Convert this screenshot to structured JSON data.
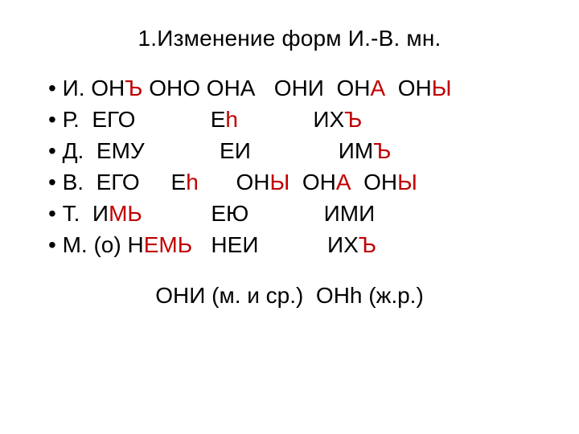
{
  "title": "1.Изменение форм И.-В. мн.",
  "colors": {
    "text": "#000000",
    "highlight": "#c00000",
    "background": "#ffffff"
  },
  "font": {
    "family": "Arial",
    "size_pt_title": 28,
    "size_pt_body": 28
  },
  "rows": [
    {
      "case": "И.",
      "segments": [
        {
          "t": "И. ОН",
          "c": "b"
        },
        {
          "t": "Ъ",
          "c": "r"
        },
        {
          "t": " ОНО ОНА   ОНИ  ОН",
          "c": "b"
        },
        {
          "t": "А",
          "c": "r"
        },
        {
          "t": "  ОН",
          "c": "b"
        },
        {
          "t": "Ы",
          "c": "r"
        }
      ]
    },
    {
      "case": "Р.",
      "segments": [
        {
          "t": "Р.  ЕГО            Е",
          "c": "b"
        },
        {
          "t": "h",
          "c": "r"
        },
        {
          "t": "            ИХ",
          "c": "b"
        },
        {
          "t": "Ъ",
          "c": "r"
        }
      ]
    },
    {
      "case": "Д.",
      "segments": [
        {
          "t": "Д.  ЕМУ            ЕИ              ИМ",
          "c": "b"
        },
        {
          "t": "Ъ",
          "c": "r"
        }
      ]
    },
    {
      "case": "В.",
      "segments": [
        {
          "t": "В.  ЕГО     Е",
          "c": "b"
        },
        {
          "t": "h",
          "c": "r"
        },
        {
          "t": "      ОН",
          "c": "b"
        },
        {
          "t": "Ы",
          "c": "r"
        },
        {
          "t": "  ОН",
          "c": "b"
        },
        {
          "t": "А",
          "c": "r"
        },
        {
          "t": "  ОН",
          "c": "b"
        },
        {
          "t": "Ы",
          "c": "r"
        }
      ]
    },
    {
      "case": "Т.",
      "segments": [
        {
          "t": "Т.  И",
          "c": "b"
        },
        {
          "t": "МЬ",
          "c": "r"
        },
        {
          "t": "           ЕЮ            ИМИ",
          "c": "b"
        }
      ]
    },
    {
      "case": "М.",
      "segments": [
        {
          "t": "М. (о) Н",
          "c": "b"
        },
        {
          "t": "ЕМЬ",
          "c": "r"
        },
        {
          "t": "   НЕИ           ИХ",
          "c": "b"
        },
        {
          "t": "Ъ",
          "c": "r"
        }
      ]
    }
  ],
  "footer": "ОНИ (м. и ср.)  ОНh (ж.р.)"
}
